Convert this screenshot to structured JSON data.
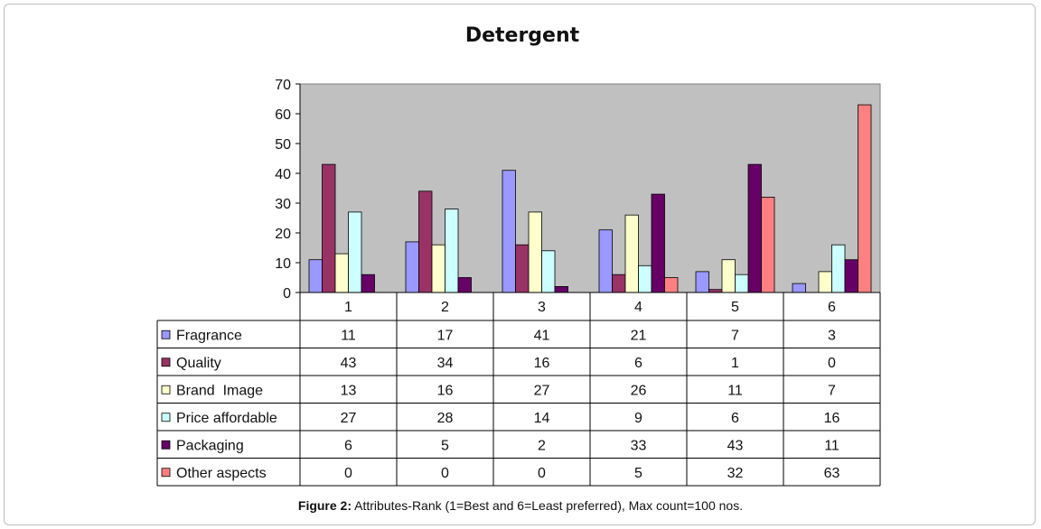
{
  "caption": {
    "label": "Figure 2:",
    "text": "Attributes-Rank (1=Best and 6=Least preferred), Max count=100 nos."
  },
  "chart_data": {
    "type": "bar",
    "title": "Detergent",
    "categories": [
      "1",
      "2",
      "3",
      "4",
      "5",
      "6"
    ],
    "ylim": [
      0,
      70
    ],
    "yticks": [
      0,
      10,
      20,
      30,
      40,
      50,
      60,
      70
    ],
    "plot_background": "#c0c0c0",
    "grid": false,
    "legend": "data-table",
    "series": [
      {
        "name": "Fragrance",
        "color": "#9999ff",
        "values": [
          11,
          17,
          41,
          21,
          7,
          3
        ]
      },
      {
        "name": "Quality",
        "color": "#993366",
        "values": [
          43,
          34,
          16,
          6,
          1,
          0
        ]
      },
      {
        "name": "Brand  Image",
        "color": "#ffffcc",
        "values": [
          13,
          16,
          27,
          26,
          11,
          7
        ]
      },
      {
        "name": "Price affordable",
        "color": "#ccffff",
        "values": [
          27,
          28,
          14,
          9,
          6,
          16
        ]
      },
      {
        "name": "Packaging",
        "color": "#660066",
        "values": [
          6,
          5,
          2,
          33,
          43,
          11
        ]
      },
      {
        "name": "Other aspects",
        "color": "#ff8080",
        "values": [
          0,
          0,
          0,
          5,
          32,
          63
        ]
      }
    ]
  }
}
